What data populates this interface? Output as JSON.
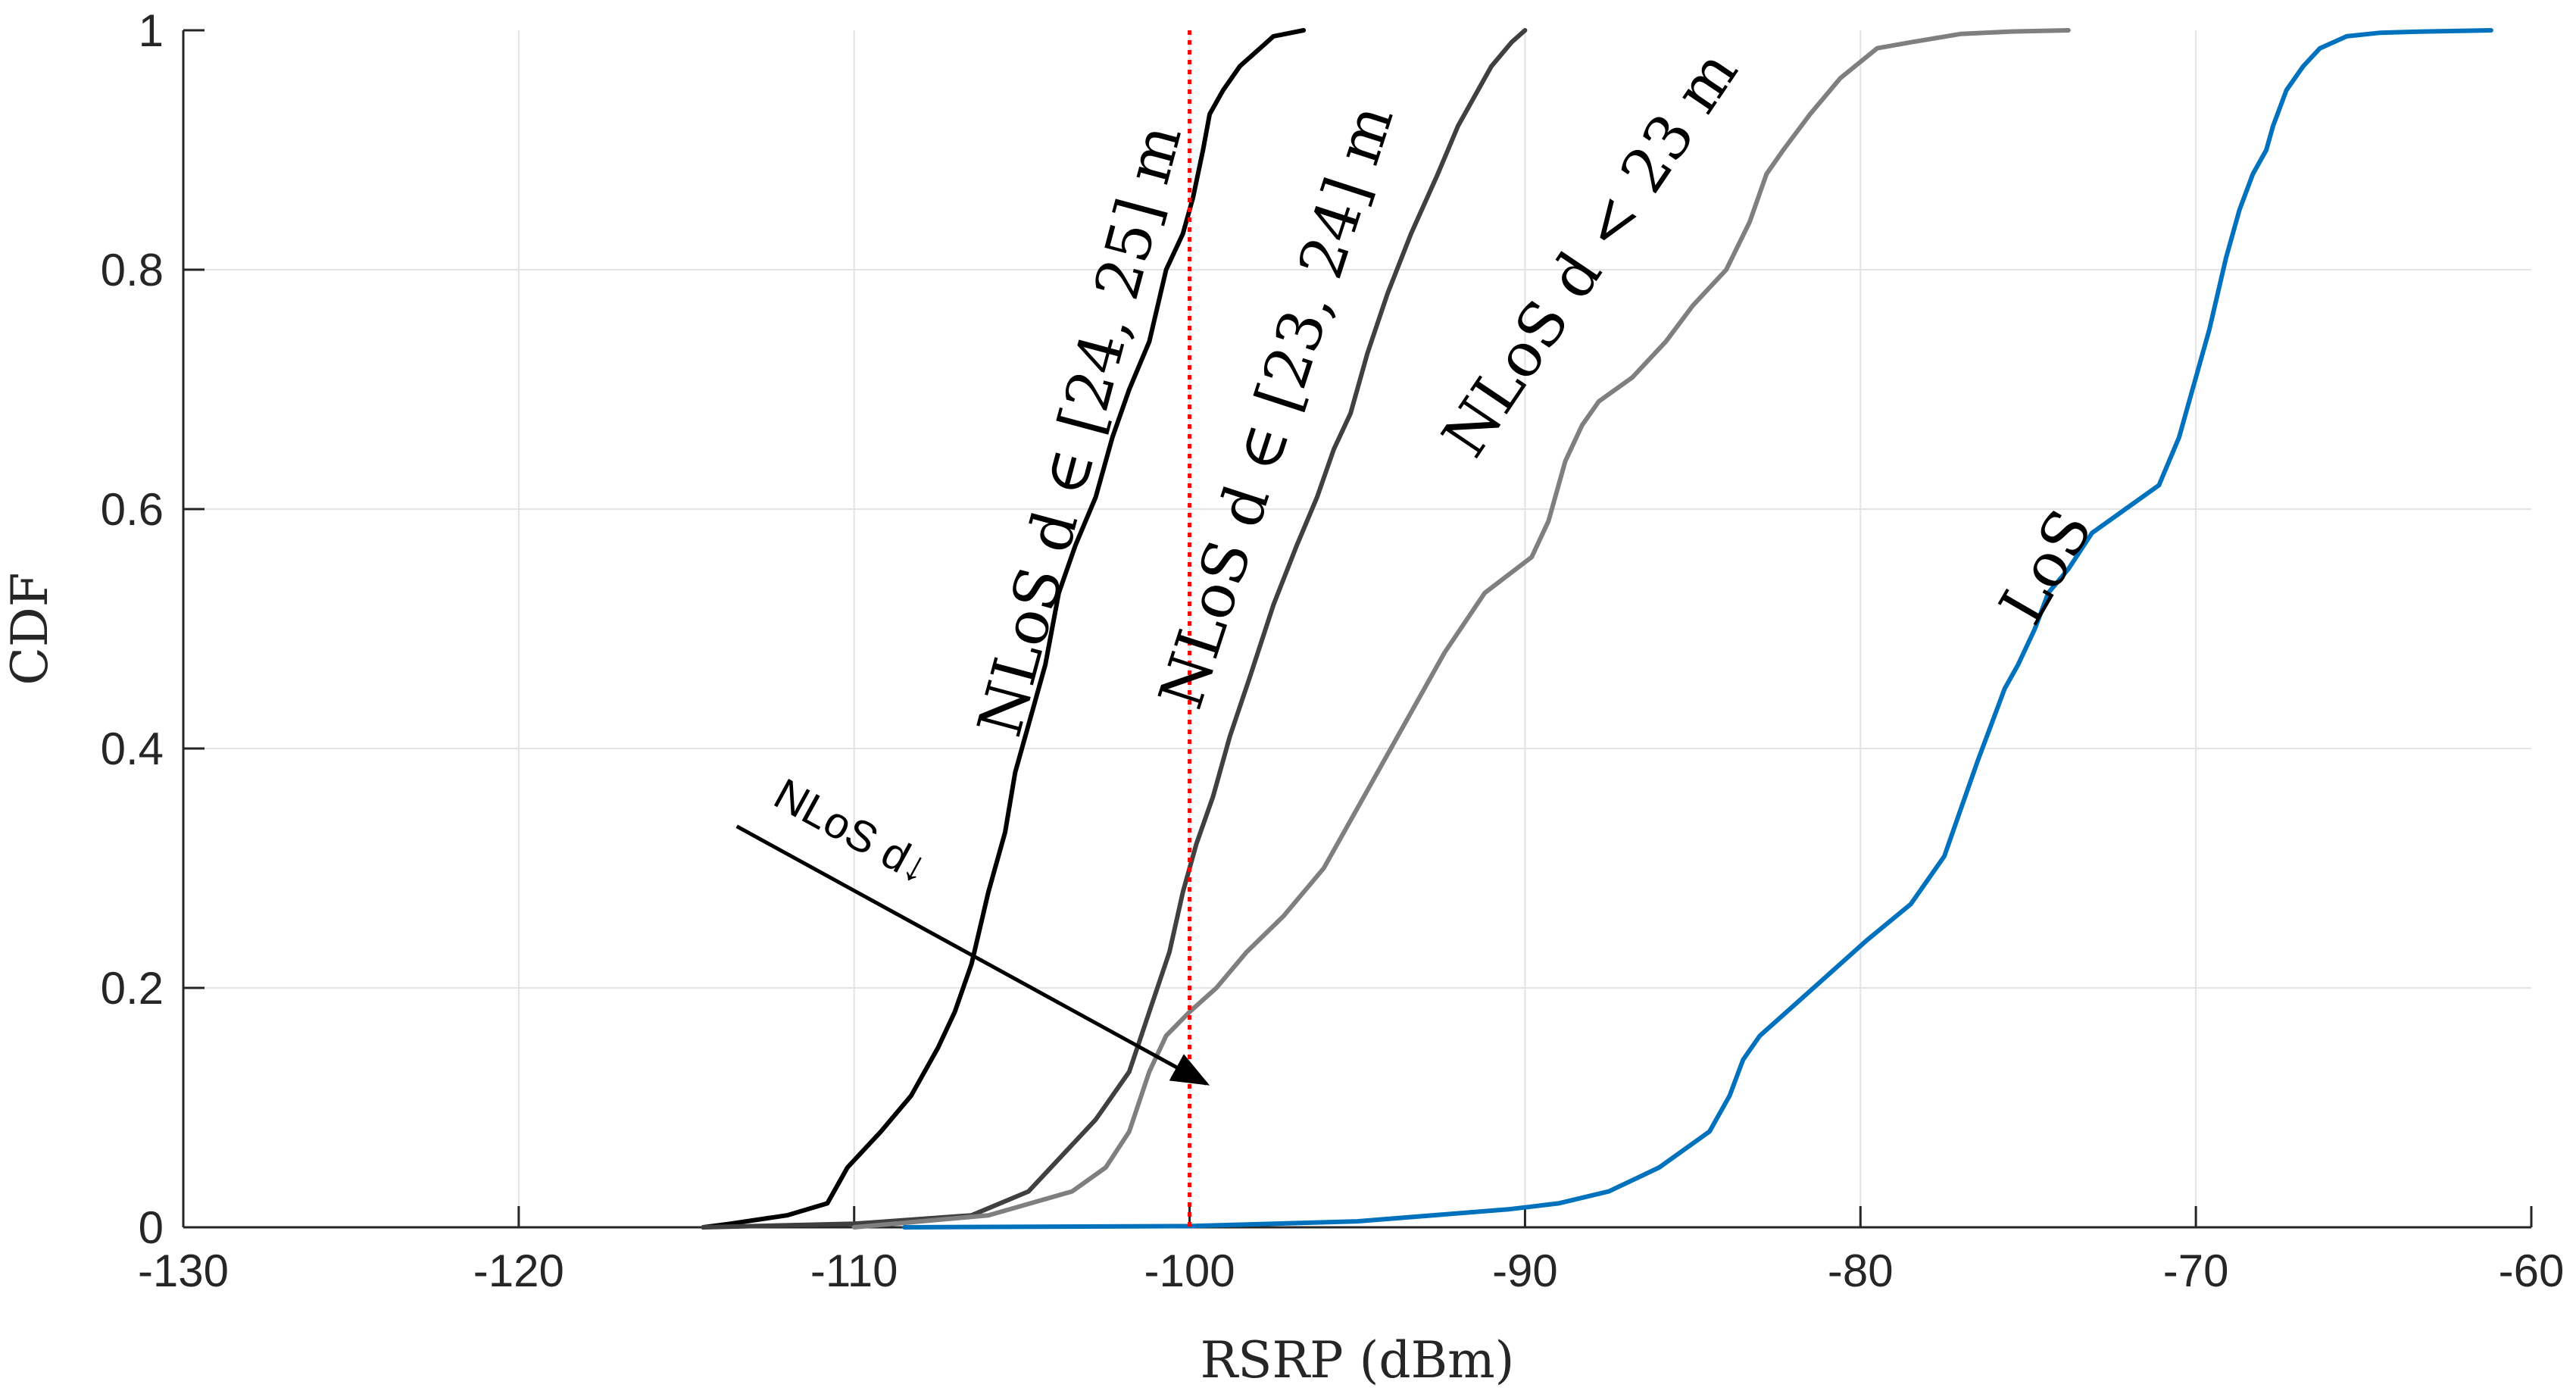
{
  "chart_data": {
    "type": "line",
    "title": "",
    "xlabel": "RSRP (dBm)",
    "ylabel": "CDF",
    "xlim": [
      -130,
      -60
    ],
    "ylim": [
      0,
      1
    ],
    "xticks": [
      -130,
      -120,
      -110,
      -100,
      -90,
      -80,
      -70,
      -60
    ],
    "xtick_labels": [
      "-130",
      "-120",
      "-110",
      "-100",
      "-90",
      "-80",
      "-70",
      "-60"
    ],
    "yticks": [
      0,
      0.2,
      0.4,
      0.6,
      0.8,
      1
    ],
    "ytick_labels": [
      "0",
      "0.2",
      "0.4",
      "0.6",
      "0.8",
      "1"
    ],
    "grid": true,
    "series": [
      {
        "name": "NLoS d ∈ [24, 25] m",
        "color": "#000000",
        "x": [
          -114.5,
          -113.7,
          -112,
          -110.8,
          -110.2,
          -109.2,
          -108.3,
          -107.5,
          -107,
          -106.5,
          -106,
          -105.5,
          -105.2,
          -104.8,
          -104.3,
          -103.9,
          -103.4,
          -102.8,
          -102.3,
          -101.8,
          -101.2,
          -100.7,
          -100.2,
          -99.9,
          -99.6,
          -99.4,
          -99.0,
          -98.5,
          -97.9,
          -97.5,
          -96.6
        ],
        "y": [
          0,
          0.003,
          0.01,
          0.02,
          0.05,
          0.08,
          0.11,
          0.15,
          0.18,
          0.22,
          0.28,
          0.33,
          0.38,
          0.42,
          0.47,
          0.53,
          0.57,
          0.61,
          0.66,
          0.7,
          0.74,
          0.8,
          0.83,
          0.86,
          0.9,
          0.93,
          0.95,
          0.97,
          0.985,
          0.995,
          1.0
        ]
      },
      {
        "name": "NLoS d ∈ [23, 24] m",
        "color": "#404040",
        "x": [
          -114.5,
          -110,
          -106.5,
          -104.8,
          -103.8,
          -102.8,
          -101.8,
          -101.2,
          -100.6,
          -100.2,
          -99.8,
          -99.3,
          -98.8,
          -98.2,
          -97.5,
          -96.8,
          -96.2,
          -95.7,
          -95.2,
          -94.7,
          -94.1,
          -93.4,
          -92.6,
          -92.0,
          -91.4,
          -91.0,
          -90.4,
          -90.0
        ],
        "y": [
          0,
          0.003,
          0.01,
          0.03,
          0.06,
          0.09,
          0.13,
          0.18,
          0.23,
          0.28,
          0.32,
          0.36,
          0.41,
          0.46,
          0.52,
          0.57,
          0.61,
          0.65,
          0.68,
          0.73,
          0.78,
          0.83,
          0.88,
          0.92,
          0.95,
          0.97,
          0.99,
          1.0
        ]
      },
      {
        "name": "NLoS d < 23 m",
        "color": "#7f7f7f",
        "x": [
          -110,
          -106,
          -103.5,
          -102.5,
          -101.8,
          -101.2,
          -100.7,
          -100,
          -99.2,
          -98.3,
          -97.2,
          -96.0,
          -94.8,
          -93.6,
          -92.4,
          -91.2,
          -89.8,
          -89.3,
          -88.8,
          -88.3,
          -87.8,
          -86.8,
          -85.8,
          -85.0,
          -84.0,
          -83.3,
          -82.8,
          -82.3,
          -81.5,
          -80.6,
          -79.5,
          -78.5,
          -77.0,
          -75.5,
          -73.8
        ],
        "y": [
          0,
          0.01,
          0.03,
          0.05,
          0.08,
          0.13,
          0.16,
          0.18,
          0.2,
          0.23,
          0.26,
          0.3,
          0.36,
          0.42,
          0.48,
          0.53,
          0.56,
          0.59,
          0.64,
          0.67,
          0.69,
          0.71,
          0.74,
          0.77,
          0.8,
          0.84,
          0.88,
          0.9,
          0.93,
          0.96,
          0.985,
          0.99,
          0.997,
          0.999,
          1.0
        ]
      },
      {
        "name": "LoS",
        "color": "#0072bd",
        "x": [
          -108.5,
          -100,
          -95,
          -90.5,
          -89,
          -87.5,
          -86,
          -84.5,
          -83.9,
          -83.5,
          -83.0,
          -82.2,
          -81.0,
          -79.8,
          -78.5,
          -77.5,
          -77.0,
          -76.5,
          -76.1,
          -75.7,
          -75.3,
          -74.8,
          -74.4,
          -73.8,
          -73.1,
          -72.1,
          -71.1,
          -70.5,
          -70.1,
          -69.6,
          -69.1,
          -68.7,
          -68.3,
          -67.9,
          -67.7,
          -67.3,
          -66.8,
          -66.3,
          -65.5,
          -64.5,
          -63.2,
          -61.2
        ],
        "y": [
          0,
          0.001,
          0.005,
          0.015,
          0.02,
          0.03,
          0.05,
          0.08,
          0.11,
          0.14,
          0.16,
          0.18,
          0.21,
          0.24,
          0.27,
          0.31,
          0.35,
          0.39,
          0.42,
          0.45,
          0.47,
          0.5,
          0.53,
          0.55,
          0.58,
          0.6,
          0.62,
          0.66,
          0.7,
          0.75,
          0.81,
          0.85,
          0.88,
          0.9,
          0.92,
          0.95,
          0.97,
          0.985,
          0.995,
          0.998,
          0.999,
          1.0
        ]
      }
    ],
    "threshold_line": {
      "x": -100,
      "color": "#ff0000",
      "style": "dotted"
    },
    "annotations": {
      "curve_labels": [
        {
          "text": "NLoS d ∈ [24, 25] m",
          "series": "NLoS d ∈ [24, 25] m"
        },
        {
          "text": "NLoS d ∈ [23, 24] m",
          "series": "NLoS d ∈ [23, 24] m"
        },
        {
          "text": "NLoS d < 23 m",
          "series": "NLoS d < 23 m"
        },
        {
          "text": "LoS",
          "series": "LoS"
        }
      ],
      "arrow": {
        "text": "NLoS d↓",
        "from": {
          "x": -113.5,
          "y": 0.335
        },
        "to": {
          "x": -99.5,
          "y": 0.12
        }
      }
    }
  }
}
